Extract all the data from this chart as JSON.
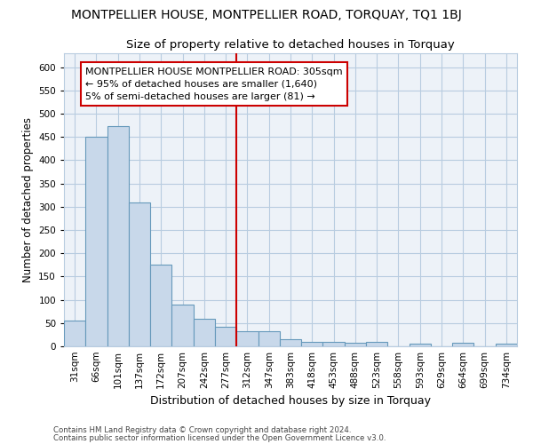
{
  "title": "MONTPELLIER HOUSE, MONTPELLIER ROAD, TORQUAY, TQ1 1BJ",
  "subtitle": "Size of property relative to detached houses in Torquay",
  "xlabel": "Distribution of detached houses by size in Torquay",
  "ylabel": "Number of detached properties",
  "categories": [
    "31sqm",
    "66sqm",
    "101sqm",
    "137sqm",
    "172sqm",
    "207sqm",
    "242sqm",
    "277sqm",
    "312sqm",
    "347sqm",
    "383sqm",
    "418sqm",
    "453sqm",
    "488sqm",
    "523sqm",
    "558sqm",
    "593sqm",
    "629sqm",
    "664sqm",
    "699sqm",
    "734sqm"
  ],
  "values": [
    55,
    450,
    473,
    310,
    175,
    90,
    60,
    42,
    32,
    33,
    16,
    10,
    10,
    7,
    10,
    0,
    5,
    0,
    8,
    0,
    5
  ],
  "bar_color": "#c8d8ea",
  "bar_edge_color": "#6699bb",
  "annotation_label": "MONTPELLIER HOUSE MONTPELLIER ROAD: 305sqm",
  "annotation_line1": "← 95% of detached houses are smaller (1,640)",
  "annotation_line2": "5% of semi-detached houses are larger (81) →",
  "annotation_box_color": "#ffffff",
  "annotation_box_edge_color": "#cc0000",
  "vline_color": "#cc0000",
  "ylim": [
    0,
    630
  ],
  "yticks": [
    0,
    50,
    100,
    150,
    200,
    250,
    300,
    350,
    400,
    450,
    500,
    550,
    600
  ],
  "background_color": "#edf2f8",
  "grid_color": "#b8cce0",
  "footer1": "Contains HM Land Registry data © Crown copyright and database right 2024.",
  "footer2": "Contains public sector information licensed under the Open Government Licence v3.0.",
  "title_fontsize": 10,
  "subtitle_fontsize": 9.5,
  "ylabel_fontsize": 8.5,
  "xlabel_fontsize": 9,
  "tick_fontsize": 7.5,
  "annot_fontsize": 8
}
